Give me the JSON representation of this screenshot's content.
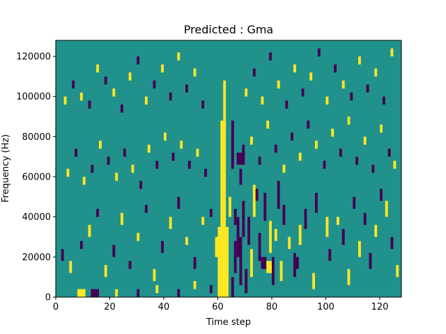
{
  "chart_data": {
    "type": "heatmap",
    "title": "Predicted : Gma",
    "xlabel": "Time step",
    "ylabel": "Frequency (Hz)",
    "xlim": [
      0,
      128
    ],
    "ylim": [
      0,
      128000
    ],
    "xticks": [
      0,
      20,
      40,
      60,
      80,
      100,
      120
    ],
    "xtick_labels": [
      "0",
      "20",
      "40",
      "60",
      "80",
      "100",
      "120"
    ],
    "yticks": [
      0,
      20000,
      40000,
      60000,
      80000,
      100000,
      120000
    ],
    "ytick_labels": [
      "0",
      "20000",
      "40000",
      "60000",
      "80000",
      "100000",
      "120000"
    ],
    "grid": false,
    "colormap": {
      "low": "#440154",
      "mid": "#21918c",
      "high": "#fde725"
    },
    "background_value": 0.5,
    "value_scale": [
      0,
      1
    ],
    "cells": [
      [
        60,
        0,
        64,
        35000,
        1
      ],
      [
        61,
        0,
        63,
        88000,
        1
      ],
      [
        62,
        82000,
        63,
        108000,
        1
      ],
      [
        63,
        0,
        64,
        15000,
        1
      ],
      [
        59,
        20000,
        60,
        30000,
        1
      ],
      [
        64,
        40000,
        65,
        50000,
        1
      ],
      [
        65,
        0,
        66,
        10000,
        0
      ],
      [
        66,
        12000,
        67,
        28000,
        0
      ],
      [
        67,
        20000,
        68,
        40000,
        0
      ],
      [
        68,
        6000,
        69,
        30000,
        0
      ],
      [
        65,
        64000,
        66,
        88000,
        0
      ],
      [
        67,
        66000,
        70,
        72000,
        0
      ],
      [
        68,
        56000,
        69,
        64000,
        0
      ],
      [
        69,
        70000,
        70,
        76000,
        0
      ],
      [
        66,
        36000,
        67,
        44000,
        0
      ],
      [
        69,
        30000,
        70,
        48000,
        0
      ],
      [
        70,
        2000,
        71,
        14000,
        0
      ],
      [
        71,
        26000,
        72,
        40000,
        0
      ],
      [
        72,
        10000,
        73,
        24000,
        1
      ],
      [
        73,
        40000,
        74,
        56000,
        1
      ],
      [
        74,
        48000,
        75,
        54000,
        0
      ],
      [
        75,
        18000,
        76,
        32000,
        0
      ],
      [
        76,
        14000,
        78,
        20000,
        0
      ],
      [
        77,
        38000,
        78,
        52000,
        0
      ],
      [
        78,
        12000,
        80,
        18000,
        1
      ],
      [
        79,
        22000,
        80,
        38000,
        1
      ],
      [
        80,
        6000,
        81,
        20000,
        0
      ],
      [
        81,
        28000,
        82,
        34000,
        1
      ],
      [
        82,
        44000,
        83,
        58000,
        0
      ],
      [
        83,
        8000,
        84,
        18000,
        1
      ],
      [
        84,
        36000,
        85,
        46000,
        0
      ],
      [
        86,
        24000,
        87,
        30000,
        1
      ],
      [
        88,
        10000,
        89,
        22000,
        0
      ],
      [
        89,
        14000,
        90,
        20000,
        0
      ],
      [
        90,
        26000,
        91,
        36000,
        1
      ],
      [
        92,
        34000,
        93,
        44000,
        0
      ],
      [
        95,
        4000,
        96,
        12000,
        1
      ],
      [
        96,
        42000,
        97,
        52000,
        0
      ],
      [
        100,
        30000,
        101,
        40000,
        1
      ],
      [
        101,
        18000,
        102,
        24000,
        0
      ],
      [
        104,
        36000,
        105,
        40000,
        1
      ],
      [
        106,
        26000,
        107,
        34000,
        0
      ],
      [
        108,
        6000,
        109,
        14000,
        1
      ],
      [
        110,
        44000,
        111,
        50000,
        0
      ],
      [
        112,
        20000,
        113,
        28000,
        1
      ],
      [
        114,
        36000,
        115,
        42000,
        0
      ],
      [
        116,
        14000,
        117,
        22000,
        0
      ],
      [
        118,
        30000,
        119,
        36000,
        1
      ],
      [
        120,
        48000,
        121,
        54000,
        0
      ],
      [
        122,
        40000,
        123,
        48000,
        1
      ],
      [
        124,
        24000,
        125,
        30000,
        0
      ],
      [
        126,
        10000,
        127,
        16000,
        1
      ],
      [
        8,
        0,
        11,
        4000,
        1
      ],
      [
        13,
        0,
        16,
        4000,
        0
      ],
      [
        22,
        0,
        23,
        4000,
        1
      ],
      [
        30,
        0,
        31,
        4000,
        0
      ],
      [
        37,
        2000,
        38,
        6000,
        1
      ],
      [
        45,
        0,
        46,
        4000,
        0
      ],
      [
        51,
        4000,
        52,
        8000,
        1
      ],
      [
        57,
        2000,
        58,
        6000,
        0
      ],
      [
        2,
        18000,
        3,
        24000,
        0
      ],
      [
        5,
        12000,
        6,
        18000,
        1
      ],
      [
        9,
        24000,
        10,
        28000,
        0
      ],
      [
        12,
        30000,
        13,
        36000,
        1
      ],
      [
        15,
        40000,
        16,
        44000,
        0
      ],
      [
        18,
        10000,
        19,
        16000,
        1
      ],
      [
        21,
        20000,
        22,
        26000,
        0
      ],
      [
        24,
        36000,
        25,
        42000,
        1
      ],
      [
        27,
        14000,
        28,
        18000,
        0
      ],
      [
        30,
        28000,
        31,
        32000,
        1
      ],
      [
        33,
        42000,
        34,
        46000,
        0
      ],
      [
        36,
        8000,
        37,
        14000,
        1
      ],
      [
        39,
        22000,
        40,
        28000,
        0
      ],
      [
        42,
        34000,
        43,
        40000,
        1
      ],
      [
        45,
        44000,
        46,
        50000,
        0
      ],
      [
        48,
        26000,
        49,
        30000,
        1
      ],
      [
        51,
        14000,
        52,
        20000,
        0
      ],
      [
        54,
        36000,
        55,
        40000,
        1
      ],
      [
        57,
        40000,
        58,
        44000,
        0
      ],
      [
        4,
        60000,
        5,
        64000,
        1
      ],
      [
        7,
        70000,
        8,
        74000,
        0
      ],
      [
        10,
        56000,
        11,
        60000,
        1
      ],
      [
        13,
        62000,
        14,
        66000,
        0
      ],
      [
        16,
        74000,
        17,
        78000,
        1
      ],
      [
        19,
        66000,
        20,
        70000,
        0
      ],
      [
        22,
        58000,
        23,
        62000,
        1
      ],
      [
        25,
        70000,
        26,
        74000,
        0
      ],
      [
        28,
        62000,
        29,
        66000,
        1
      ],
      [
        31,
        54000,
        32,
        58000,
        0
      ],
      [
        34,
        72000,
        35,
        76000,
        1
      ],
      [
        37,
        64000,
        38,
        68000,
        0
      ],
      [
        40,
        78000,
        41,
        82000,
        1
      ],
      [
        43,
        68000,
        44,
        72000,
        0
      ],
      [
        46,
        74000,
        47,
        78000,
        1
      ],
      [
        49,
        64000,
        50,
        68000,
        0
      ],
      [
        52,
        70000,
        53,
        74000,
        1
      ],
      [
        55,
        60000,
        56,
        64000,
        0
      ],
      [
        3,
        96000,
        4,
        100000,
        1
      ],
      [
        6,
        104000,
        7,
        108000,
        0
      ],
      [
        9,
        98000,
        10,
        102000,
        1
      ],
      [
        12,
        94000,
        13,
        98000,
        0
      ],
      [
        15,
        112000,
        16,
        116000,
        1
      ],
      [
        18,
        106000,
        19,
        110000,
        0
      ],
      [
        21,
        100000,
        22,
        104000,
        1
      ],
      [
        24,
        92000,
        25,
        96000,
        0
      ],
      [
        27,
        108000,
        28,
        112000,
        1
      ],
      [
        30,
        116000,
        31,
        120000,
        0
      ],
      [
        33,
        96000,
        34,
        100000,
        1
      ],
      [
        36,
        104000,
        37,
        108000,
        0
      ],
      [
        39,
        112000,
        40,
        116000,
        1
      ],
      [
        42,
        98000,
        43,
        102000,
        0
      ],
      [
        45,
        118000,
        46,
        122000,
        1
      ],
      [
        48,
        102000,
        49,
        106000,
        0
      ],
      [
        51,
        110000,
        52,
        114000,
        1
      ],
      [
        54,
        94000,
        55,
        98000,
        0
      ],
      [
        70,
        100000,
        71,
        104000,
        1
      ],
      [
        73,
        110000,
        74,
        114000,
        0
      ],
      [
        76,
        96000,
        77,
        100000,
        1
      ],
      [
        79,
        118000,
        80,
        122000,
        0
      ],
      [
        82,
        104000,
        83,
        108000,
        1
      ],
      [
        85,
        94000,
        86,
        98000,
        0
      ],
      [
        88,
        112000,
        89,
        116000,
        1
      ],
      [
        91,
        100000,
        92,
        104000,
        0
      ],
      [
        94,
        108000,
        95,
        112000,
        1
      ],
      [
        97,
        120000,
        98,
        124000,
        0
      ],
      [
        100,
        96000,
        101,
        100000,
        1
      ],
      [
        103,
        112000,
        104,
        116000,
        0
      ],
      [
        106,
        104000,
        107,
        108000,
        1
      ],
      [
        109,
        98000,
        110,
        102000,
        0
      ],
      [
        112,
        116000,
        113,
        120000,
        1
      ],
      [
        115,
        102000,
        116,
        106000,
        0
      ],
      [
        118,
        110000,
        119,
        114000,
        1
      ],
      [
        121,
        96000,
        122,
        100000,
        0
      ],
      [
        124,
        120000,
        125,
        124000,
        1
      ],
      [
        72,
        76000,
        73,
        80000,
        1
      ],
      [
        75,
        66000,
        76,
        70000,
        0
      ],
      [
        78,
        84000,
        79,
        88000,
        1
      ],
      [
        81,
        72000,
        82,
        76000,
        0
      ],
      [
        84,
        62000,
        85,
        66000,
        1
      ],
      [
        87,
        78000,
        88,
        82000,
        0
      ],
      [
        90,
        68000,
        91,
        72000,
        1
      ],
      [
        93,
        84000,
        94,
        88000,
        0
      ],
      [
        96,
        74000,
        97,
        78000,
        1
      ],
      [
        99,
        64000,
        100,
        68000,
        0
      ],
      [
        102,
        80000,
        103,
        84000,
        1
      ],
      [
        105,
        70000,
        106,
        74000,
        0
      ],
      [
        108,
        86000,
        109,
        90000,
        1
      ],
      [
        111,
        66000,
        112,
        70000,
        0
      ],
      [
        114,
        76000,
        115,
        80000,
        1
      ],
      [
        117,
        62000,
        118,
        66000,
        0
      ],
      [
        120,
        82000,
        121,
        86000,
        1
      ],
      [
        123,
        70000,
        124,
        74000,
        0
      ],
      [
        125,
        64000,
        126,
        68000,
        1
      ]
    ]
  }
}
